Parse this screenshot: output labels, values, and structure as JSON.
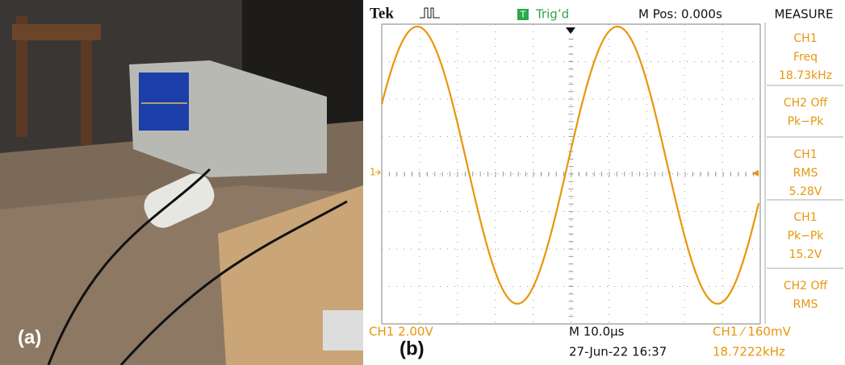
{
  "panel_a": {
    "label": "(a)"
  },
  "panel_b": {
    "label": "(b)",
    "header": {
      "brand": "Tek",
      "trigger_badge": "T",
      "trigger_status": "Trig’d",
      "position": "M Pos: 0.000s",
      "menu": "MEASURE"
    },
    "ch1_marker": "1",
    "measurements": [
      [
        "CH1",
        "Freq",
        "18.73kHz"
      ],
      [
        "CH2 Off",
        "Pk−Pk"
      ],
      [
        "CH1",
        "RMS",
        "5.28V"
      ],
      [
        "CH1",
        "Pk−Pk",
        "15.2V"
      ],
      [
        "CH2 Off",
        "RMS"
      ]
    ],
    "footer": {
      "ch1_scale": "CH1  2.00V",
      "timebase": "M 10.0µs",
      "datetime": "27-Jun-22 16:37",
      "trigger_level": "CH1 ⁄ 160mV",
      "trigger_freq": "18.7222kHz"
    }
  }
}
